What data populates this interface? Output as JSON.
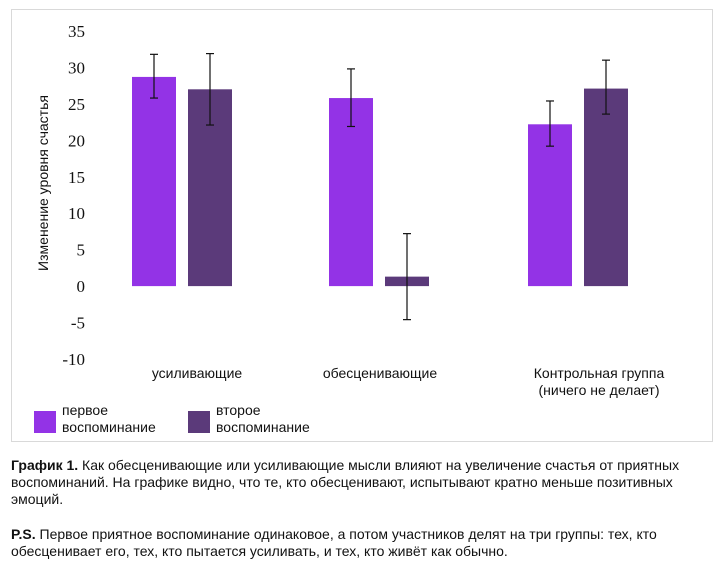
{
  "chart_data": {
    "type": "bar",
    "title": "",
    "xlabel": "",
    "ylabel": "Изменение уровня счастья",
    "ylim": [
      -10,
      35
    ],
    "yticks": [
      -10,
      -5,
      0,
      5,
      10,
      15,
      20,
      25,
      30,
      35
    ],
    "ytick_labels": [
      "-10",
      "-5",
      "0",
      "5",
      "10",
      "15",
      "20",
      "25",
      "30",
      "35"
    ],
    "grid": false,
    "legend_position": "bottom-left",
    "categories": [
      [
        "усиливающие"
      ],
      [
        "обесценивающие"
      ],
      [
        "Контрольная группа",
        "(ничего не делает)"
      ]
    ],
    "series": [
      {
        "name_lines": [
          "первое",
          "воспоминание"
        ],
        "color": "#9333e6",
        "values": [
          28.7,
          25.8,
          22.2
        ],
        "error_low": [
          25.8,
          21.9,
          19.2
        ],
        "error_high": [
          31.8,
          29.8,
          25.4
        ]
      },
      {
        "name_lines": [
          "второе",
          "воспоминание"
        ],
        "color": "#5b3a7a",
        "values": [
          27.0,
          1.3,
          27.1
        ],
        "error_low": [
          22.1,
          -4.6,
          23.6
        ],
        "error_high": [
          31.9,
          7.2,
          31.0
        ]
      }
    ]
  },
  "caption": {
    "label": "График 1.",
    "text": " Как обесценивающие или усиливающие мысли влияют на увеличение счастья от приятных воспоминаний. На графике видно, что те, кто обесценивают, испытывают кратно меньше позитивных эмоций."
  },
  "ps": {
    "label": "P.S.",
    "text": " Первое приятное воспоминание одинаковое, а потом участников делят на три группы: тех, кто обесценивает его, тех, кто пытается усиливать, и тех, кто живёт как обычно."
  }
}
